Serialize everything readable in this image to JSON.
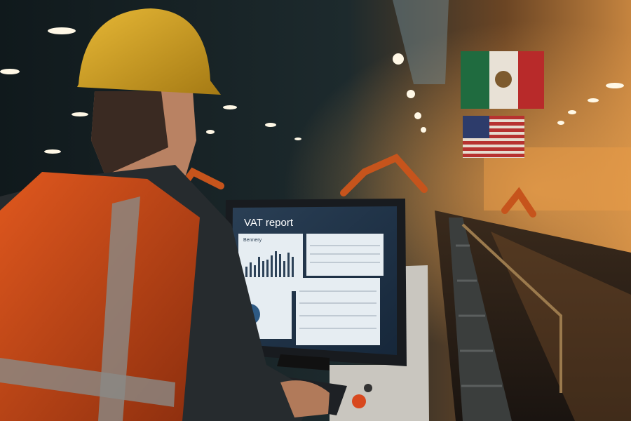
{
  "screen": {
    "title": "VAT report",
    "panel_label": "Bennery"
  }
}
